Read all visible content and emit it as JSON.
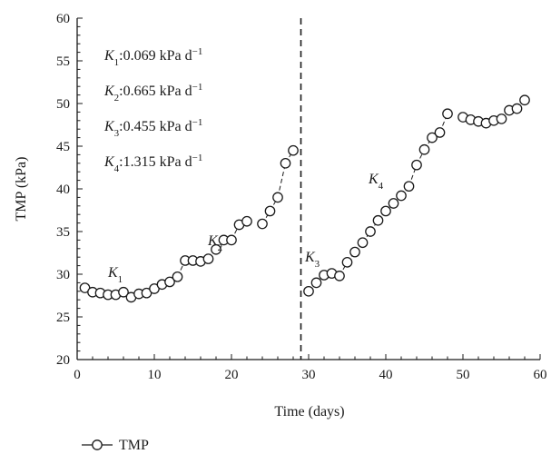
{
  "chart_data": {
    "type": "scatter",
    "xlabel": "Time (days)",
    "ylabel": "TMP (kPa)",
    "xlim": [
      0,
      60
    ],
    "ylim": [
      20,
      60
    ],
    "xticks": [
      0,
      10,
      20,
      30,
      40,
      50,
      60
    ],
    "yticks": [
      20,
      25,
      30,
      35,
      40,
      45,
      50,
      55,
      60
    ],
    "grid": false,
    "legend": {
      "entries": [
        "TMP"
      ],
      "placement": "bottom-left"
    },
    "series": [
      {
        "name": "TMP",
        "marker": "circle-open",
        "color": "#1a1a1a",
        "points": [
          [
            1,
            28.4
          ],
          [
            2,
            27.9
          ],
          [
            3,
            27.8
          ],
          [
            4,
            27.6
          ],
          [
            5,
            27.6
          ],
          [
            6,
            27.9
          ],
          [
            7,
            27.3
          ],
          [
            8,
            27.7
          ],
          [
            9,
            27.8
          ],
          [
            10,
            28.3
          ],
          [
            11,
            28.8
          ],
          [
            12,
            29.1
          ],
          [
            13,
            29.7
          ],
          [
            14,
            31.6
          ],
          [
            15,
            31.6
          ],
          [
            16,
            31.5
          ],
          [
            17,
            31.8
          ],
          [
            18,
            32.9
          ],
          [
            19,
            34.0
          ],
          [
            20,
            34.0
          ],
          [
            21,
            35.8
          ],
          [
            22,
            36.2
          ],
          [
            24,
            35.9
          ],
          [
            25,
            37.4
          ],
          [
            26,
            39.0
          ],
          [
            27,
            43.0
          ],
          [
            28,
            44.5
          ],
          [
            30,
            28.0
          ],
          [
            31,
            29.0
          ],
          [
            32,
            29.9
          ],
          [
            33,
            30.1
          ],
          [
            34,
            29.8
          ],
          [
            35,
            31.4
          ],
          [
            36,
            32.6
          ],
          [
            37,
            33.7
          ],
          [
            38,
            35.0
          ],
          [
            39,
            36.3
          ],
          [
            40,
            37.4
          ],
          [
            41,
            38.3
          ],
          [
            42,
            39.2
          ],
          [
            43,
            40.3
          ],
          [
            44,
            42.8
          ],
          [
            45,
            44.6
          ],
          [
            46,
            46.0
          ],
          [
            47,
            46.6
          ],
          [
            48,
            48.8
          ],
          [
            50,
            48.4
          ],
          [
            51,
            48.1
          ],
          [
            52,
            47.9
          ],
          [
            53,
            47.7
          ],
          [
            54,
            48.0
          ],
          [
            55,
            48.2
          ],
          [
            56,
            49.2
          ],
          [
            57,
            49.4
          ],
          [
            58,
            50.4
          ]
        ]
      }
    ],
    "connectors": [
      {
        "from": [
          7,
          27.3
        ],
        "to": [
          22,
          36.2
        ]
      },
      {
        "from": [
          24,
          35.9
        ],
        "to": [
          28,
          44.5
        ]
      },
      {
        "from": [
          30,
          28.0
        ],
        "to": [
          48,
          48.8
        ]
      }
    ],
    "divider_x": 29,
    "annotations": [
      {
        "id": "k1-text",
        "text": "K1:0.069 kPa d−1"
      },
      {
        "id": "k2-text",
        "text": "K2:0.665 kPa d−1"
      },
      {
        "id": "k3-text",
        "text": "K3:0.455 kPa d−1"
      },
      {
        "id": "k4-text",
        "text": "K4:1.315 kPa d−1"
      }
    ],
    "segment_labels": [
      {
        "text": "K1",
        "at": [
          5.5,
          29.8
        ]
      },
      {
        "text": "K2",
        "at": [
          16,
          34.8
        ]
      },
      {
        "text": "K3",
        "at": [
          29.4,
          33.2
        ]
      },
      {
        "text": "K4",
        "at": [
          40,
          42.1
        ]
      }
    ]
  },
  "text": {
    "k1": {
      "sym": "K",
      "sub": "1",
      "val": ":0.069 kPa d",
      "sup": "−1"
    },
    "k2": {
      "sym": "K",
      "sub": "2",
      "val": ":0.665 kPa d",
      "sup": "−1"
    },
    "k3": {
      "sym": "K",
      "sub": "3",
      "val": ":0.455 kPa d",
      "sup": "−1"
    },
    "k4": {
      "sym": "K",
      "sub": "4",
      "val": ":1.315 kPa d",
      "sup": "−1"
    },
    "seg1": {
      "sym": "K",
      "sub": "1"
    },
    "seg2": {
      "sym": "K",
      "sub": "2"
    },
    "seg3": {
      "sym": "K",
      "sub": "3"
    },
    "seg4": {
      "sym": "K",
      "sub": "4"
    },
    "legend_label": "TMP"
  }
}
